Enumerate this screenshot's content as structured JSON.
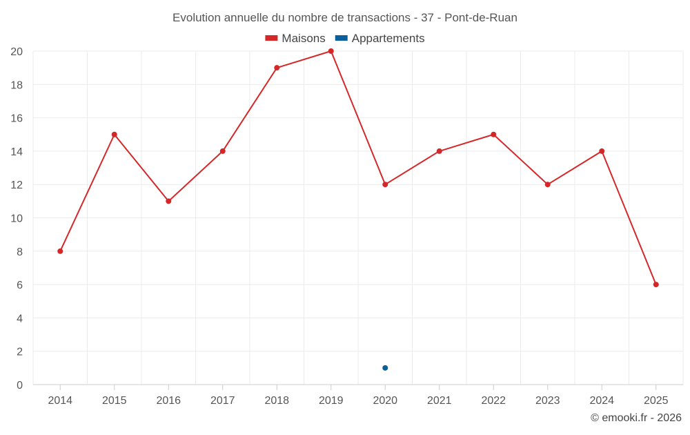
{
  "chart_data": {
    "type": "line",
    "title": "Evolution annuelle du nombre de transactions - 37 - Pont-de-Ruan",
    "categories": [
      "2014",
      "2015",
      "2016",
      "2017",
      "2018",
      "2019",
      "2020",
      "2021",
      "2022",
      "2023",
      "2024",
      "2025"
    ],
    "series": [
      {
        "name": "Maisons",
        "color": "#d62728",
        "values": [
          8,
          15,
          11,
          14,
          19,
          20,
          12,
          14,
          15,
          12,
          14,
          6
        ]
      },
      {
        "name": "Appartements",
        "color": "#0b5f9a",
        "values": [
          null,
          null,
          null,
          null,
          null,
          null,
          1,
          null,
          null,
          null,
          null,
          null
        ]
      }
    ],
    "ylim": [
      0,
      20
    ],
    "yticks": [
      "0",
      "2",
      "4",
      "6",
      "8",
      "10",
      "12",
      "14",
      "16",
      "18",
      "20"
    ],
    "xlabel": "",
    "ylabel": "",
    "grid": true,
    "legend_position": "top-center"
  },
  "credit": "© emooki.fr - 2026"
}
